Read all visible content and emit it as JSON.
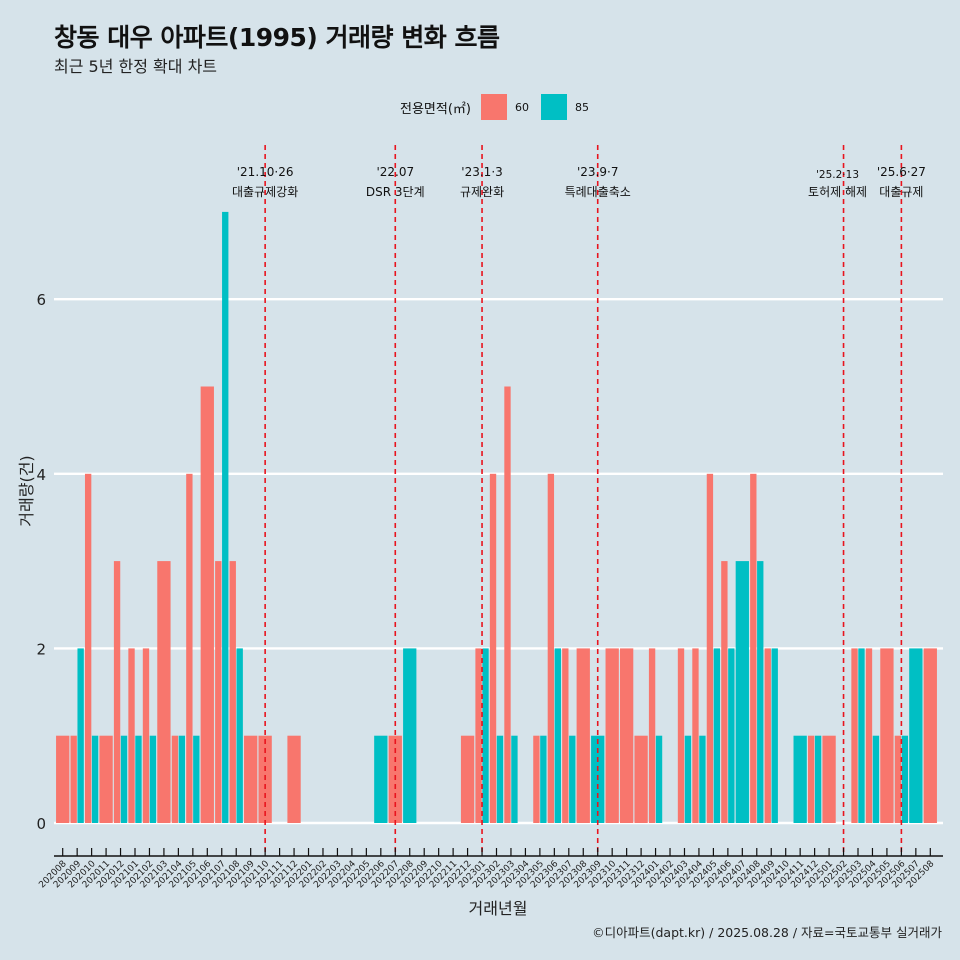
{
  "header": {
    "title": "창동 대우 아파트(1995) 거래량 변화 흐름",
    "subtitle": "최근 5년 한정 확대 차트"
  },
  "legend": {
    "title": "전용면적(㎡)",
    "items": [
      {
        "label": "60",
        "color": "#f8766d"
      },
      {
        "label": "85",
        "color": "#00bfc4"
      }
    ]
  },
  "caption": "©디아파트(dapt.kr) / 2025.08.28 / 자료=국토교통부 실거래가",
  "chart_data": {
    "type": "bar",
    "title": "창동 대우 아파트(1995) 거래량 변화 흐름",
    "subtitle": "최근 5년 한정 확대 차트",
    "xlabel": "거래년월",
    "ylabel": "거래량(건)",
    "ylim": [
      0,
      7
    ],
    "yticks": [
      0,
      2,
      4,
      6
    ],
    "grid": true,
    "legend_position": "top",
    "bar_mode": "dodge",
    "categories": [
      "202008",
      "202009",
      "202010",
      "202011",
      "202012",
      "202101",
      "202102",
      "202103",
      "202104",
      "202105",
      "202106",
      "202107",
      "202108",
      "202109",
      "202110",
      "202111",
      "202112",
      "202201",
      "202202",
      "202203",
      "202204",
      "202205",
      "202206",
      "202207",
      "202208",
      "202209",
      "202210",
      "202211",
      "202212",
      "202301",
      "202302",
      "202303",
      "202304",
      "202305",
      "202306",
      "202307",
      "202308",
      "202309",
      "202310",
      "202311",
      "202312",
      "202401",
      "202402",
      "202403",
      "202404",
      "202405",
      "202406",
      "202407",
      "202408",
      "202409",
      "202410",
      "202411",
      "202412",
      "202501",
      "202502",
      "202503",
      "202504",
      "202505",
      "202506",
      "202507",
      "202508"
    ],
    "series": [
      {
        "name": "60",
        "color": "#f8766d",
        "values": [
          1,
          1,
          4,
          1,
          3,
          2,
          2,
          3,
          1,
          4,
          5,
          3,
          3,
          1,
          1,
          0,
          1,
          0,
          0,
          0,
          0,
          0,
          0,
          1,
          0,
          0,
          0,
          0,
          1,
          2,
          4,
          5,
          0,
          1,
          4,
          2,
          2,
          0,
          2,
          2,
          1,
          2,
          0,
          2,
          2,
          4,
          3,
          0,
          4,
          2,
          0,
          0,
          1,
          1,
          0,
          2,
          2,
          2,
          1,
          0,
          2
        ]
      },
      {
        "name": "85",
        "color": "#00bfc4",
        "values": [
          0,
          2,
          1,
          0,
          1,
          1,
          1,
          0,
          1,
          1,
          0,
          7,
          2,
          0,
          0,
          0,
          0,
          0,
          0,
          0,
          0,
          0,
          1,
          0,
          2,
          0,
          0,
          0,
          0,
          2,
          1,
          1,
          0,
          1,
          2,
          1,
          0,
          1,
          0,
          0,
          0,
          1,
          0,
          1,
          1,
          2,
          2,
          3,
          3,
          2,
          0,
          1,
          1,
          0,
          0,
          2,
          1,
          0,
          1,
          2,
          0
        ]
      }
    ],
    "annotations": [
      {
        "x": "202110",
        "date": "'21.10·26",
        "label": "대출규제강화"
      },
      {
        "x": "202207",
        "date": "'22.07",
        "label": "DSR 3단계"
      },
      {
        "x": "202301",
        "date": "'23.1·3",
        "label": "규제완화"
      },
      {
        "x": "202309",
        "date": "'23.9·7",
        "label": "특례대출축소"
      },
      {
        "x": "202502",
        "date": "'25.2·13",
        "label": "토허제 해제",
        "small": true
      },
      {
        "x": "202506",
        "date": "'25.6·27",
        "label": "대출규제"
      }
    ],
    "annotation_line_color": "#e8141e"
  }
}
